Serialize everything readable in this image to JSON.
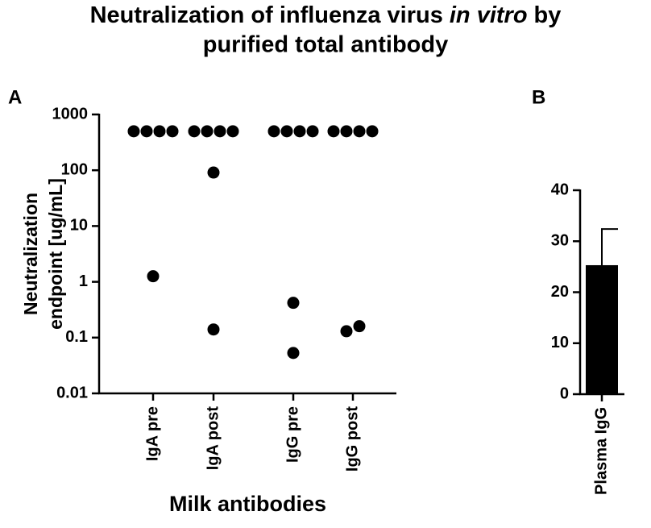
{
  "title": [
    "Neutralization of influenza virus",
    "in vitro",
    "by",
    "purified total antibody"
  ],
  "chart_data": [
    {
      "type": "dot",
      "panel": "A",
      "categories": [
        "IgA pre",
        "IgA post",
        "IgG pre",
        "IgG post"
      ],
      "groups": [
        [
          500,
          500,
          500,
          500,
          1.26
        ],
        [
          500,
          500,
          500,
          500,
          91,
          0.14
        ],
        [
          500,
          500,
          500,
          500,
          0.42,
          0.053
        ],
        [
          500,
          500,
          500,
          500,
          0.13,
          0.16
        ]
      ],
      "color": "#000000",
      "log_y": true,
      "ylim": [
        0.01,
        1000
      ],
      "yticks": [
        0.01,
        0.1,
        1,
        10,
        100,
        1000
      ],
      "y_label": [
        "Neutralization",
        "endpoint [ug/mL]"
      ],
      "x_label": "Milk antibodies"
    },
    {
      "type": "bar",
      "panel": "B",
      "categories": [
        "Plasma IgG"
      ],
      "values": [
        25.3
      ],
      "errors": [
        7.1
      ],
      "color": "#000000",
      "ylim": [
        0,
        40
      ],
      "yticks": [
        0,
        10,
        20,
        30,
        40
      ]
    }
  ]
}
